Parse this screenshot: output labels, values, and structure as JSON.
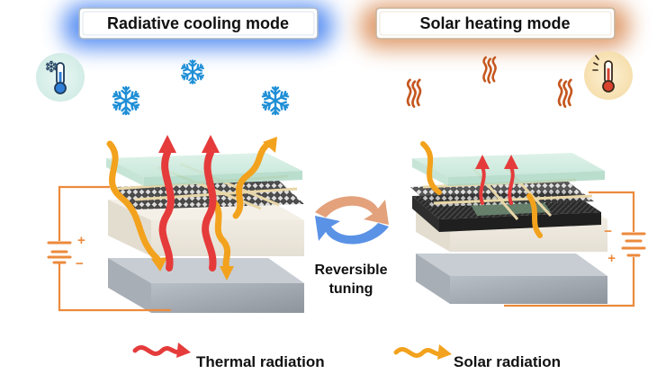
{
  "titles": {
    "left": "Radiative cooling mode",
    "right": "Solar heating mode"
  },
  "center": {
    "line1": "Reversible",
    "line2": "tuning"
  },
  "legend": {
    "thermal": "Thermal radiation",
    "solar": "Solar radiation"
  },
  "signs": {
    "left_plus": "+",
    "left_minus": "−",
    "right_minus": "−",
    "right_plus": "+"
  },
  "icons": {
    "left_badge": "thermometer-snowflake-icon",
    "right_badge": "thermometer-sun-icon",
    "snowflake": "snowflake-icon",
    "heat": "heat-wave-icon"
  },
  "colors": {
    "cool_glow": "#3d7df0",
    "warm_glow": "#d98a52",
    "thermal": "#e53b3b",
    "solar": "#f2a21d",
    "wire": "#ec8a3c",
    "snowflake": "#1f8fd6",
    "heat": "#c5571f",
    "cycle_top": "#e3a27c",
    "cycle_bottom": "#5a92e6"
  }
}
